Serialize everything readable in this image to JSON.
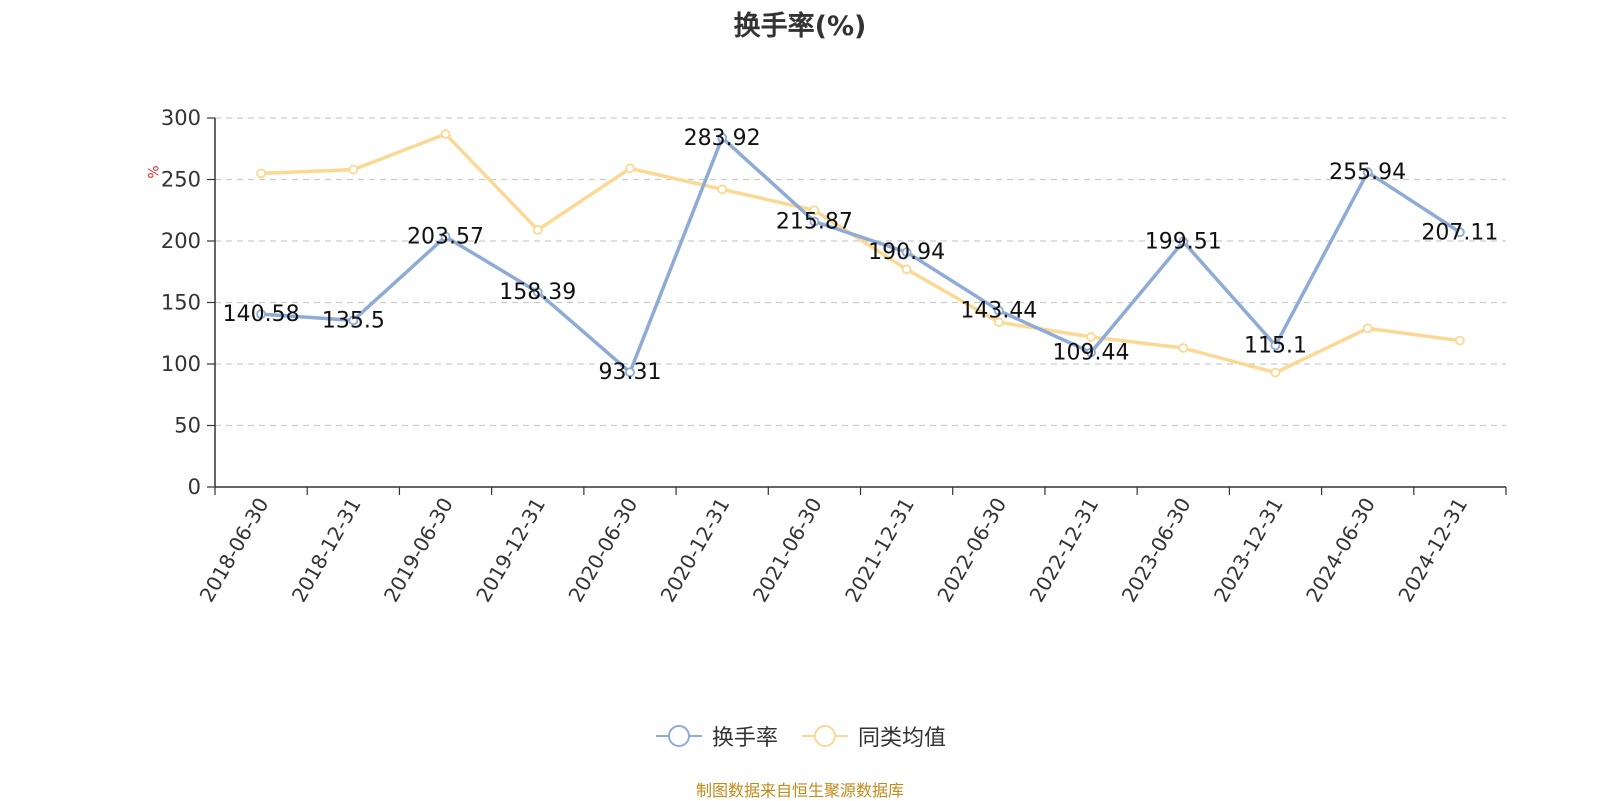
{
  "title": "换手率(%)",
  "y_axis_unit": "%",
  "source_text": "制图数据来自恒生聚源数据库",
  "colors": {
    "turnover": "#8eabd7",
    "peer_avg": "#fbd995",
    "source_text": "#c48a1a",
    "unit_label": "#e03030",
    "grid": "#cccccc",
    "axis": "#333333"
  },
  "legend": [
    {
      "label": "换手率",
      "icon": "circle-line-icon"
    },
    {
      "label": "同类均值",
      "icon": "circle-line-icon"
    }
  ],
  "chart_data": {
    "type": "line",
    "title": "换手率(%)",
    "ylabel": "%",
    "xlabel": "",
    "ylim": [
      0,
      300
    ],
    "yticks": [
      0,
      50,
      100,
      150,
      200,
      250,
      300
    ],
    "grid": true,
    "legend_position": "bottom",
    "categories": [
      "2018-06-30",
      "2018-12-31",
      "2019-06-30",
      "2019-12-31",
      "2020-06-30",
      "2020-12-31",
      "2021-06-30",
      "2021-12-31",
      "2022-06-30",
      "2022-12-31",
      "2023-06-30",
      "2023-12-31",
      "2024-06-30",
      "2024-12-31"
    ],
    "series": [
      {
        "name": "换手率",
        "values": [
          140.58,
          135.5,
          203.57,
          158.39,
          93.31,
          283.92,
          215.87,
          190.94,
          143.44,
          109.44,
          199.51,
          115.1,
          255.94,
          207.11
        ],
        "data_labels": true
      },
      {
        "name": "同类均值",
        "values": [
          255,
          258,
          287,
          209,
          259,
          242,
          225,
          177,
          134,
          122,
          113,
          93,
          129,
          119
        ],
        "data_labels": false
      }
    ]
  }
}
